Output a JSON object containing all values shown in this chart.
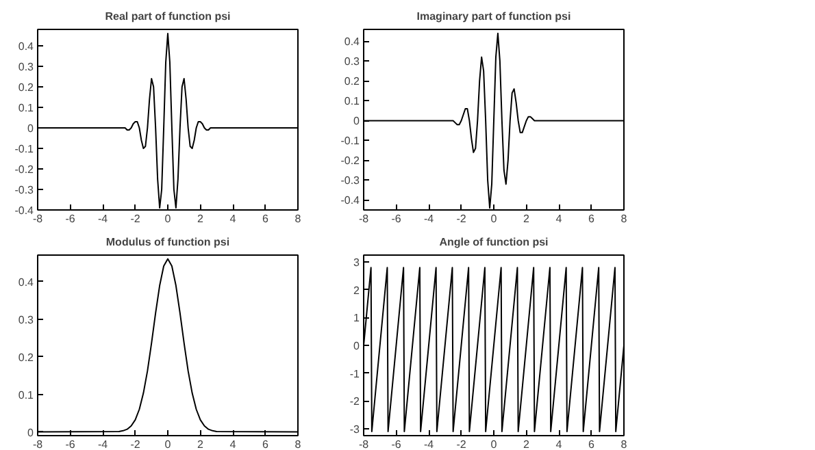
{
  "chart_data": [
    {
      "type": "line",
      "title": "Real part of function psi",
      "xlim": [
        -8,
        8
      ],
      "ylim": [
        -0.4,
        0.48
      ],
      "xticks": [
        -8,
        -6,
        -4,
        -2,
        0,
        2,
        4,
        6,
        8
      ],
      "yticks": [
        -0.4,
        -0.3,
        -0.2,
        -0.1,
        0,
        0.1,
        0.2,
        0.3,
        0.4
      ],
      "grid": false,
      "x": [
        -8,
        -3,
        -2.75,
        -2.625,
        -2.5,
        -2.375,
        -2.25,
        -2.125,
        -2,
        -1.875,
        -1.75,
        -1.625,
        -1.5,
        -1.375,
        -1.25,
        -1.125,
        -1,
        -0.875,
        -0.75,
        -0.625,
        -0.5,
        -0.375,
        -0.25,
        -0.125,
        0,
        0.125,
        0.25,
        0.375,
        0.5,
        0.625,
        0.75,
        0.875,
        1,
        1.125,
        1.25,
        1.375,
        1.5,
        1.625,
        1.75,
        1.875,
        2,
        2.125,
        2.25,
        2.375,
        2.5,
        2.625,
        2.75,
        3,
        8
      ],
      "series": [
        {
          "color": "#000000",
          "values": [
            0,
            0,
            0,
            0,
            -0.01,
            -0.01,
            0,
            0.02,
            0.03,
            0.03,
            0,
            -0.06,
            -0.1,
            -0.09,
            0,
            0.14,
            0.24,
            0.2,
            0,
            -0.25,
            -0.39,
            -0.3,
            0,
            0.32,
            0.46,
            0.32,
            0,
            -0.3,
            -0.39,
            -0.25,
            0,
            0.2,
            0.24,
            0.14,
            0,
            -0.09,
            -0.1,
            -0.06,
            0,
            0.03,
            0.03,
            0.02,
            0,
            -0.01,
            -0.01,
            0,
            0,
            0,
            0
          ]
        }
      ]
    },
    {
      "type": "line",
      "title": "Imaginary part of function psi",
      "xlim": [
        -8,
        8
      ],
      "ylim": [
        -0.45,
        0.46
      ],
      "xticks": [
        -8,
        -6,
        -4,
        -2,
        0,
        2,
        4,
        6,
        8
      ],
      "yticks": [
        -0.4,
        -0.3,
        -0.2,
        -0.1,
        0,
        0.1,
        0.2,
        0.3,
        0.4
      ],
      "grid": false,
      "x": [
        -8,
        -2.5,
        -2.375,
        -2.25,
        -2.125,
        -2,
        -1.875,
        -1.75,
        -1.625,
        -1.5,
        -1.375,
        -1.25,
        -1.125,
        -1,
        -0.875,
        -0.75,
        -0.625,
        -0.5,
        -0.375,
        -0.25,
        -0.125,
        0,
        0.125,
        0.25,
        0.375,
        0.5,
        0.625,
        0.75,
        0.875,
        1,
        1.125,
        1.25,
        1.375,
        1.5,
        1.625,
        1.75,
        1.875,
        2,
        2.125,
        2.25,
        2.375,
        2.5,
        8
      ],
      "series": [
        {
          "color": "#000000",
          "values": [
            0,
            0,
            -0.01,
            -0.02,
            -0.02,
            0,
            0.03,
            0.06,
            0.06,
            0,
            -0.09,
            -0.16,
            -0.14,
            0,
            0.2,
            0.32,
            0.25,
            0,
            -0.3,
            -0.44,
            -0.32,
            0,
            0.32,
            0.44,
            0.3,
            0,
            -0.25,
            -0.32,
            -0.2,
            0,
            0.14,
            0.16,
            0.09,
            0,
            -0.06,
            -0.06,
            -0.03,
            0,
            0.02,
            0.02,
            0.01,
            0,
            0
          ]
        }
      ]
    },
    {
      "type": "line",
      "title": "Modulus of function psi",
      "xlim": [
        -8,
        8
      ],
      "ylim": [
        -0.01,
        0.47
      ],
      "xticks": [
        -8,
        -6,
        -4,
        -2,
        0,
        2,
        4,
        6,
        8
      ],
      "yticks": [
        0,
        0.1,
        0.2,
        0.3,
        0.4
      ],
      "grid": false,
      "x": [
        -8,
        -3,
        -2.75,
        -2.5,
        -2.25,
        -2,
        -1.75,
        -1.5,
        -1.25,
        -1,
        -0.75,
        -0.5,
        -0.25,
        0,
        0.25,
        0.5,
        0.75,
        1,
        1.25,
        1.5,
        1.75,
        2,
        2.25,
        2.5,
        2.75,
        3,
        8
      ],
      "series": [
        {
          "color": "#000000",
          "values": [
            0,
            0.001,
            0.003,
            0.007,
            0.016,
            0.032,
            0.06,
            0.103,
            0.162,
            0.236,
            0.316,
            0.389,
            0.441,
            0.46,
            0.441,
            0.389,
            0.316,
            0.236,
            0.162,
            0.103,
            0.06,
            0.032,
            0.016,
            0.007,
            0.003,
            0.001,
            0
          ]
        }
      ]
    },
    {
      "type": "line",
      "title": "Angle of function psi",
      "xlim": [
        -8,
        8
      ],
      "ylim": [
        -3.25,
        3.25
      ],
      "xticks": [
        -8,
        -6,
        -4,
        -2,
        0,
        2,
        4,
        6,
        8
      ],
      "yticks": [
        -3,
        -2,
        -1,
        0,
        1,
        2,
        3
      ],
      "grid": false,
      "x": [
        -8,
        -7.55,
        -7.5,
        -6.55,
        -6.5,
        -5.55,
        -5.5,
        -4.55,
        -4.5,
        -3.55,
        -3.5,
        -2.55,
        -2.5,
        -1.55,
        -1.5,
        -0.55,
        -0.5,
        0.45,
        0.5,
        1.45,
        1.5,
        2.45,
        2.5,
        3.45,
        3.5,
        4.45,
        4.5,
        5.45,
        5.5,
        6.45,
        6.5,
        7.45,
        7.5,
        8
      ],
      "series": [
        {
          "color": "#000000",
          "values": [
            0,
            2.8,
            -3.1,
            2.8,
            -3.1,
            2.8,
            -3.1,
            2.8,
            -3.1,
            2.8,
            -3.1,
            2.8,
            -3.1,
            2.8,
            -3.1,
            2.8,
            -3.1,
            2.8,
            -3.1,
            2.8,
            -3.1,
            2.8,
            -3.1,
            2.8,
            -3.1,
            2.8,
            -3.1,
            2.8,
            -3.1,
            2.8,
            -3.1,
            2.8,
            -3.1,
            0
          ]
        }
      ]
    }
  ]
}
